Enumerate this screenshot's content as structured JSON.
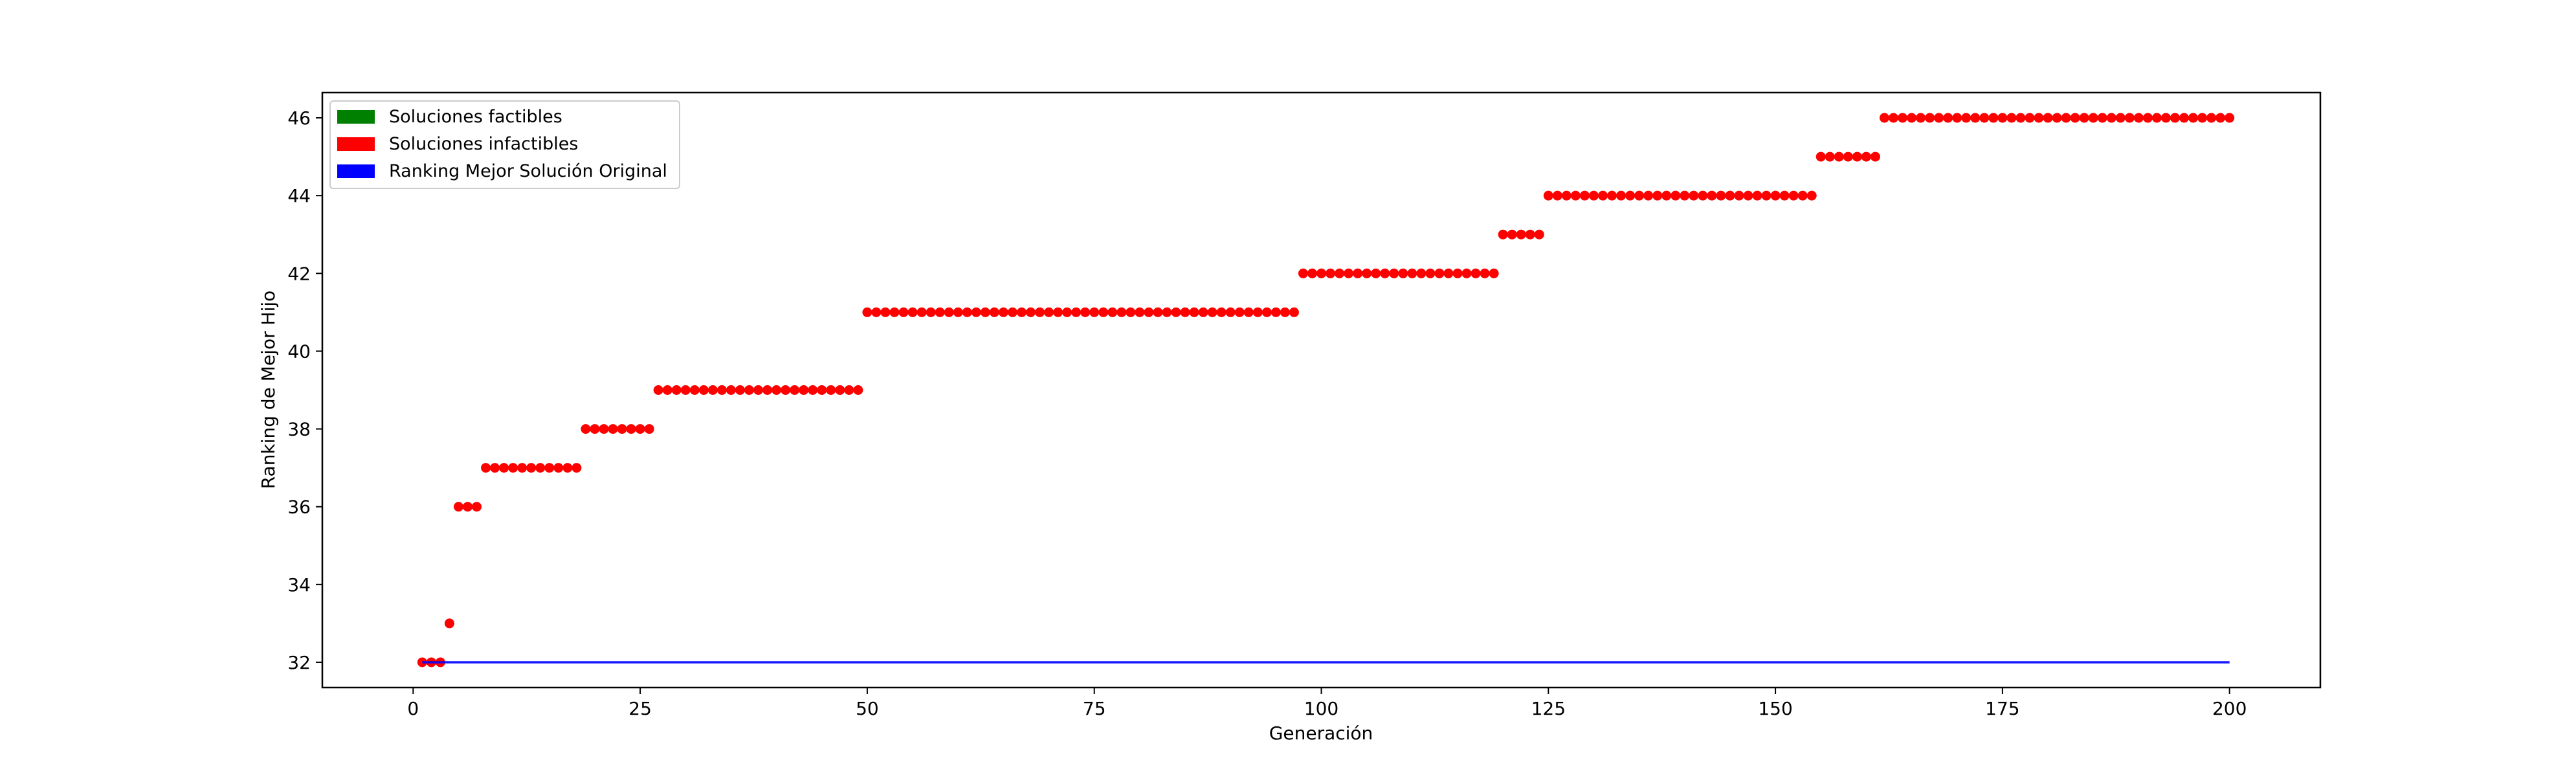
{
  "chart_data": {
    "type": "scatter",
    "xlabel": "Generación",
    "ylabel": "Ranking de Mejor Hijo",
    "xlim": [
      -10,
      210
    ],
    "ylim": [
      31.35,
      46.65
    ],
    "xticks": [
      0,
      25,
      50,
      75,
      100,
      125,
      150,
      175,
      200
    ],
    "yticks": [
      32,
      34,
      36,
      38,
      40,
      42,
      44,
      46
    ],
    "legend_position": "top-left",
    "legend": [
      {
        "label": "Soluciones factibles",
        "color": "#008000"
      },
      {
        "label": "Soluciones infactibles",
        "color": "#ff0000"
      },
      {
        "label": "Ranking Mejor Solución Original",
        "color": "#0000ff"
      }
    ],
    "series": [
      {
        "name": "Soluciones factibles",
        "color": "#008000",
        "points": []
      },
      {
        "name": "Soluciones infactibles",
        "color": "#ff0000",
        "runs": [
          {
            "x_start": 1,
            "x_end": 3,
            "y": 32
          },
          {
            "x_start": 4,
            "x_end": 4,
            "y": 33
          },
          {
            "x_start": 5,
            "x_end": 7,
            "y": 36
          },
          {
            "x_start": 8,
            "x_end": 18,
            "y": 37
          },
          {
            "x_start": 19,
            "x_end": 26,
            "y": 38
          },
          {
            "x_start": 27,
            "x_end": 49,
            "y": 39
          },
          {
            "x_start": 50,
            "x_end": 97,
            "y": 41
          },
          {
            "x_start": 98,
            "x_end": 119,
            "y": 42
          },
          {
            "x_start": 120,
            "x_end": 124,
            "y": 43
          },
          {
            "x_start": 125,
            "x_end": 154,
            "y": 44
          },
          {
            "x_start": 155,
            "x_end": 161,
            "y": 45
          },
          {
            "x_start": 162,
            "x_end": 200,
            "y": 46
          }
        ]
      },
      {
        "name": "Ranking Mejor Solución Original",
        "color": "#0000ff",
        "line": {
          "x": [
            1,
            200
          ],
          "y": [
            32,
            32
          ]
        }
      }
    ]
  }
}
